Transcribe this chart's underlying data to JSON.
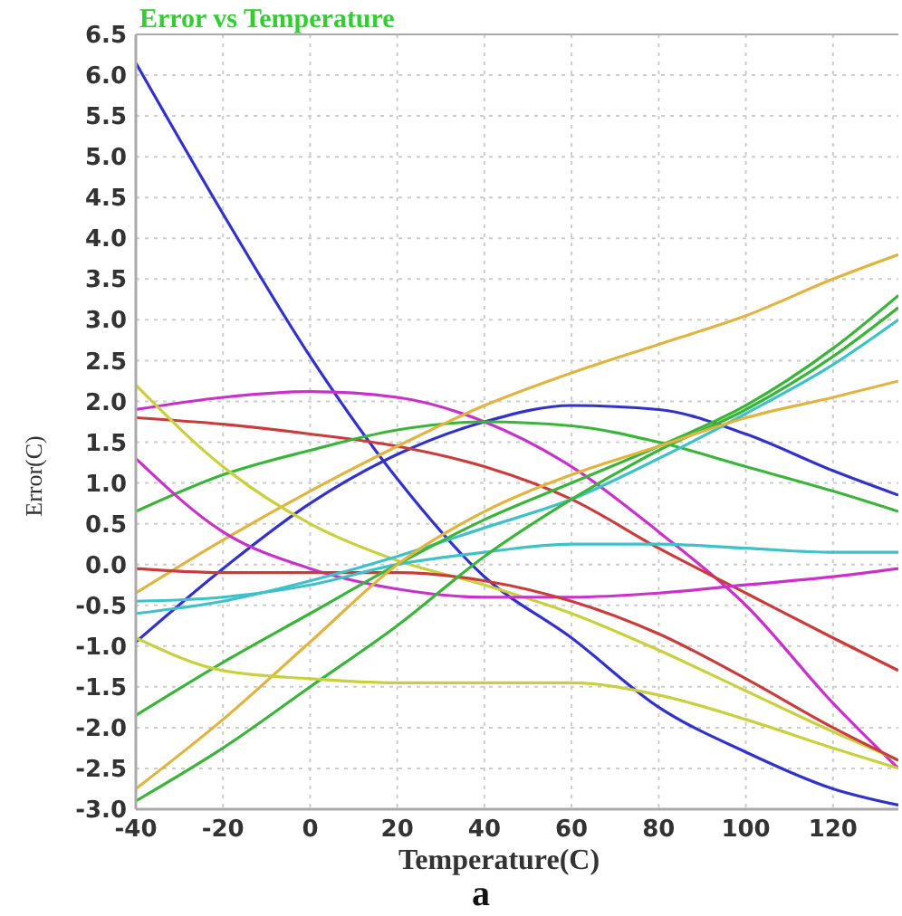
{
  "chart_data": {
    "type": "line",
    "title": "Error vs Temperature",
    "xlabel": "Temperature(C)",
    "ylabel": "Error(C)",
    "annotations": [
      "a"
    ],
    "x": [
      -40,
      -20,
      0,
      20,
      40,
      60,
      80,
      100,
      120,
      135
    ],
    "xlim": [
      -40,
      135
    ],
    "xticks": [
      -40,
      -20,
      0,
      20,
      40,
      60,
      80,
      100,
      120
    ],
    "ylim": [
      -3,
      6.5
    ],
    "yticks": [
      {
        "value": -3,
        "label": "-3.0"
      },
      {
        "value": -2.5,
        "label": "-2.5"
      },
      {
        "value": -2,
        "label": "-2.0"
      },
      {
        "value": -1.5,
        "label": "-1.5"
      },
      {
        "value": -1,
        "label": "-1.0"
      },
      {
        "value": -0.5,
        "label": "-0.5"
      },
      {
        "value": 0,
        "label": "0.0"
      },
      {
        "value": 0.5,
        "label": "0.5"
      },
      {
        "value": 1,
        "label": "1.0"
      },
      {
        "value": 1.5,
        "label": "1.5"
      },
      {
        "value": 2,
        "label": "2.0"
      },
      {
        "value": 2.5,
        "label": "2.5"
      },
      {
        "value": 3,
        "label": "3.0"
      },
      {
        "value": 3.5,
        "label": "3.5"
      },
      {
        "value": 4,
        "label": "4.0"
      },
      {
        "value": 4.5,
        "label": "4.5"
      },
      {
        "value": 5,
        "label": "5.0"
      },
      {
        "value": 5.5,
        "label": "5.5"
      },
      {
        "value": 6,
        "label": "6.0"
      },
      {
        "value": 6.5,
        "label": "6.5"
      }
    ],
    "grid": true,
    "line_style": "solid",
    "marker": "none",
    "series": [
      {
        "color": "#3232c8",
        "values": [
          6.15,
          4.3,
          2.55,
          1.05,
          -0.15,
          -0.9,
          -1.75,
          -2.3,
          -2.75,
          -2.95
        ]
      },
      {
        "color": "#3232c8",
        "values": [
          -0.95,
          -0.05,
          0.75,
          1.35,
          1.75,
          1.95,
          1.9,
          1.6,
          1.15,
          0.85
        ]
      },
      {
        "color": "#c832c8",
        "values": [
          1.9,
          2.05,
          2.12,
          2.05,
          1.75,
          1.2,
          0.4,
          -0.5,
          -1.7,
          -2.5
        ]
      },
      {
        "color": "#c83c3c",
        "values": [
          1.8,
          1.72,
          1.6,
          1.45,
          1.2,
          0.8,
          0.2,
          -0.35,
          -0.9,
          -1.3
        ]
      },
      {
        "color": "#3cb43c",
        "values": [
          0.65,
          1.1,
          1.4,
          1.65,
          1.75,
          1.7,
          1.5,
          1.2,
          0.9,
          0.65
        ]
      },
      {
        "color": "#e0b440",
        "values": [
          -0.35,
          0.3,
          0.9,
          1.45,
          1.95,
          2.35,
          2.7,
          3.05,
          3.5,
          3.8
        ]
      },
      {
        "color": "#c8d040",
        "values": [
          2.2,
          1.2,
          0.5,
          0.05,
          -0.25,
          -0.6,
          -1.05,
          -1.55,
          -2.05,
          -2.4
        ]
      },
      {
        "color": "#c832c8",
        "values": [
          1.3,
          0.4,
          -0.05,
          -0.3,
          -0.4,
          -0.4,
          -0.35,
          -0.25,
          -0.15,
          -0.05
        ]
      },
      {
        "color": "#c83c3c",
        "values": [
          -0.05,
          -0.1,
          -0.1,
          -0.1,
          -0.2,
          -0.45,
          -0.85,
          -1.4,
          -2.0,
          -2.4
        ]
      },
      {
        "color": "#40c0c8",
        "values": [
          -0.45,
          -0.4,
          -0.25,
          0.0,
          0.15,
          0.25,
          0.25,
          0.2,
          0.15,
          0.15
        ]
      },
      {
        "color": "#40c0c8",
        "values": [
          -0.6,
          -0.45,
          -0.2,
          0.1,
          0.45,
          0.8,
          1.3,
          1.85,
          2.45,
          3.0
        ]
      },
      {
        "color": "#3cb43c",
        "values": [
          -1.85,
          -1.2,
          -0.6,
          0.0,
          0.55,
          1.0,
          1.45,
          1.95,
          2.65,
          3.3
        ]
      },
      {
        "color": "#3cb43c",
        "values": [
          -2.9,
          -2.25,
          -1.5,
          -0.75,
          0.1,
          0.8,
          1.4,
          1.9,
          2.55,
          3.15
        ]
      },
      {
        "color": "#e0b440",
        "values": [
          -2.75,
          -1.9,
          -0.95,
          0.0,
          0.65,
          1.1,
          1.45,
          1.8,
          2.05,
          2.25
        ]
      },
      {
        "color": "#c8d040",
        "values": [
          -0.9,
          -1.3,
          -1.4,
          -1.45,
          -1.45,
          -1.45,
          -1.6,
          -1.9,
          -2.25,
          -2.5
        ]
      }
    ]
  }
}
